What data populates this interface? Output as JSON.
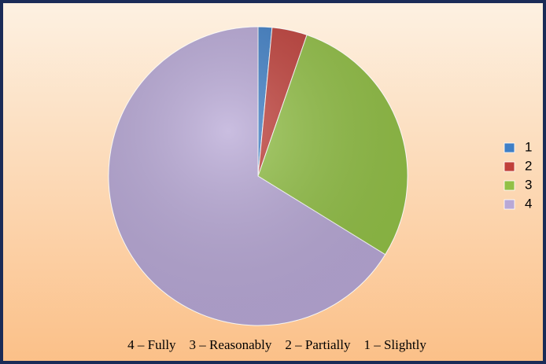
{
  "chart_data": {
    "type": "pie",
    "categories": [
      "1",
      "2",
      "3",
      "4"
    ],
    "values": [
      1.5,
      3.8,
      28.5,
      66.2
    ],
    "colors": [
      "#3f7fc6",
      "#c0403a",
      "#92c046",
      "#b8a8d6"
    ],
    "legend": "right",
    "annotation": "4 – Fully    3 – Reasonably    2 – Partially    1 – Slightly"
  }
}
